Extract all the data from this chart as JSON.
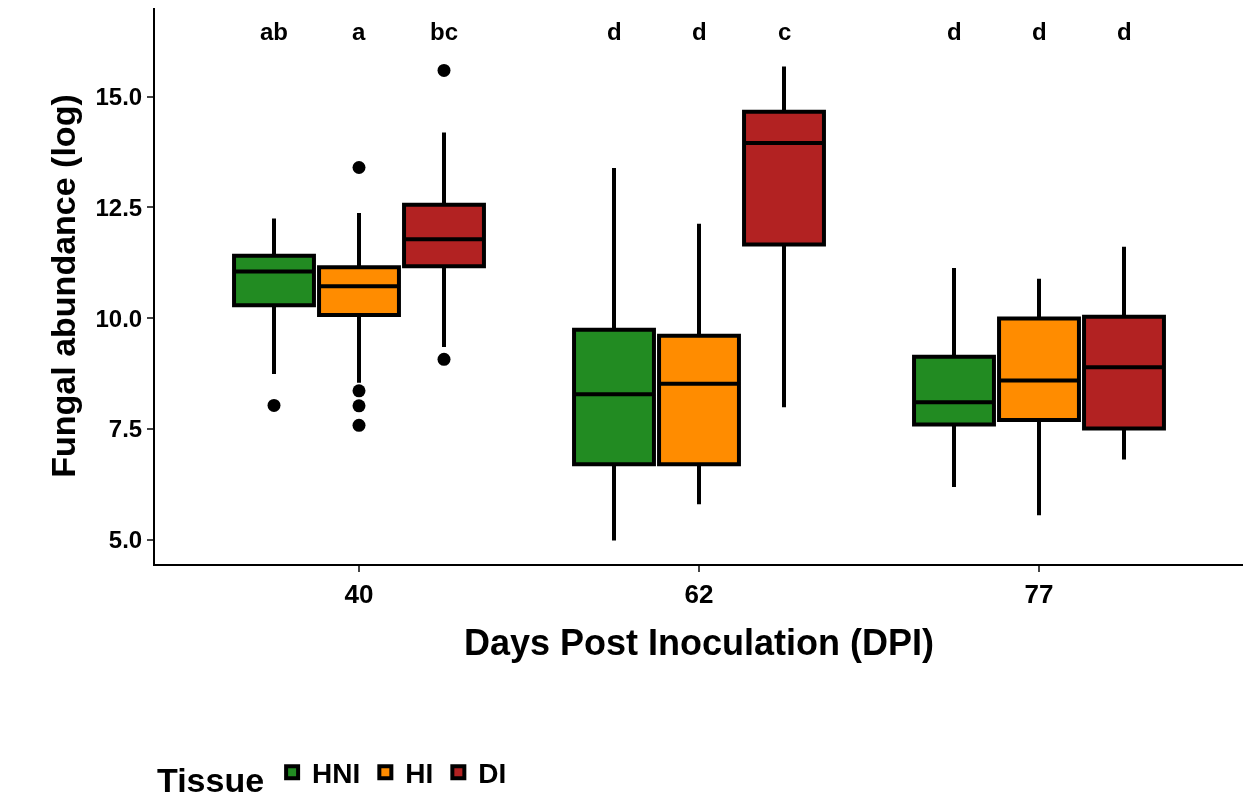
{
  "chart_data": {
    "type": "box",
    "xlabel": "Days Post Inoculation (DPI)",
    "ylabel": "Fungal abundance (log)",
    "legend_title": "Tissue",
    "legend": "bottom",
    "categories": [
      "40",
      "62",
      "77"
    ],
    "ylim": [
      4.45,
      17.0
    ],
    "yticks": [
      {
        "value": 5,
        "label": "5.0"
      },
      {
        "value": 7.5,
        "label": "7.5"
      },
      {
        "value": 10,
        "label": "10.0"
      },
      {
        "value": 12.5,
        "label": "12.5"
      },
      {
        "value": 15,
        "label": "15.0"
      }
    ],
    "series": [
      {
        "name": "HNI",
        "color": "#228b22",
        "boxes": [
          {
            "low": 8.74,
            "q1": 10.29,
            "median": 11.05,
            "q3": 11.41,
            "high": 12.25,
            "outliers": [
              8.03
            ]
          },
          {
            "low": 4.98,
            "q1": 6.7,
            "median": 8.28,
            "q3": 9.74,
            "high": 13.39
          },
          {
            "low": 6.19,
            "q1": 7.6,
            "median": 8.1,
            "q3": 9.13,
            "high": 11.13
          }
        ]
      },
      {
        "name": "HI",
        "color": "#ff8c00",
        "boxes": [
          {
            "low": 8.54,
            "q1": 10.07,
            "median": 10.72,
            "q3": 11.15,
            "high": 12.37,
            "outliers": [
              13.4,
              8.36,
              8.02,
              7.58
            ]
          },
          {
            "low": 5.8,
            "q1": 6.7,
            "median": 8.52,
            "q3": 9.6,
            "high": 12.13
          },
          {
            "low": 5.55,
            "q1": 7.7,
            "median": 8.59,
            "q3": 9.99,
            "high": 10.89
          }
        ]
      },
      {
        "name": "DI",
        "color": "#b22222",
        "boxes": [
          {
            "low": 9.35,
            "q1": 11.17,
            "median": 11.78,
            "q3": 12.56,
            "high": 14.19,
            "outliers": [
              15.59,
              9.07
            ]
          },
          {
            "low": 7.99,
            "q1": 11.66,
            "median": 13.95,
            "q3": 14.66,
            "high": 15.68
          },
          {
            "low": 6.81,
            "q1": 7.51,
            "median": 8.89,
            "q3": 10.03,
            "high": 11.61
          }
        ]
      }
    ],
    "annotations": [
      "ab",
      "a",
      "bc",
      "d",
      "d",
      "c",
      "d",
      "d",
      "d"
    ]
  }
}
